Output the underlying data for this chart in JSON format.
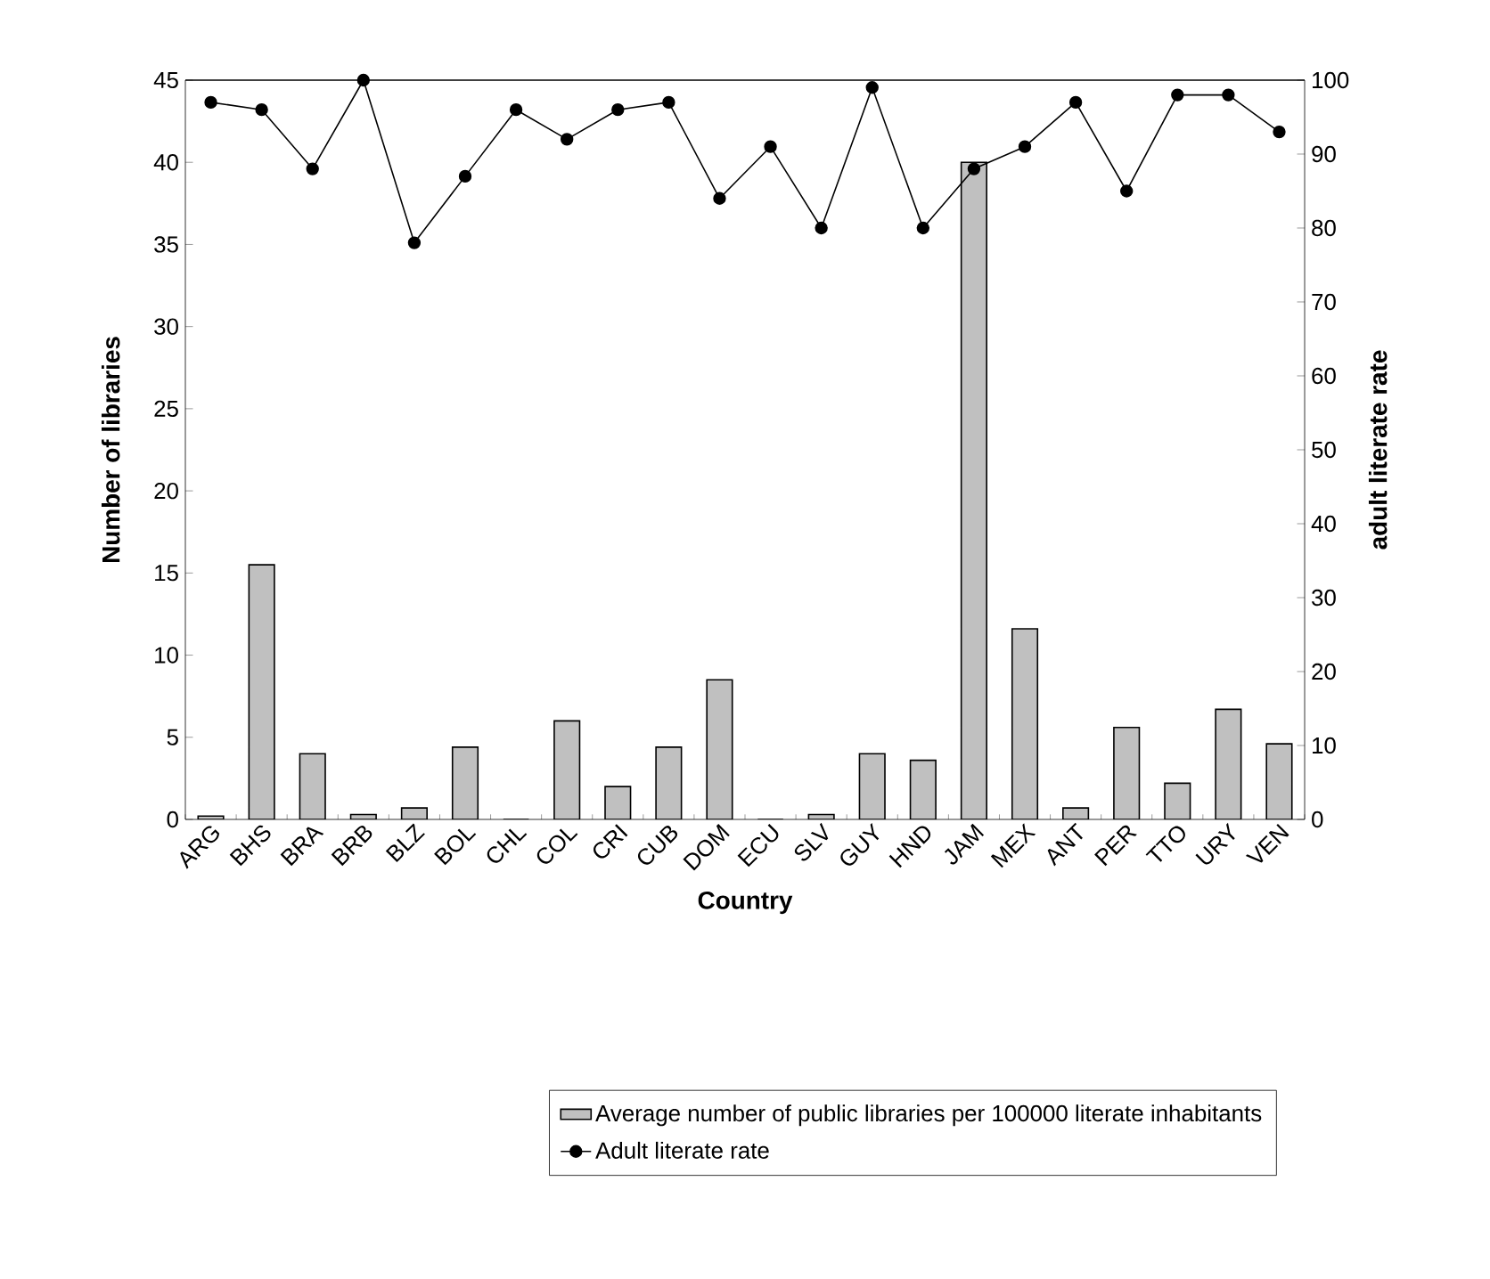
{
  "chart_data": {
    "type": "bar",
    "categories": [
      "ARG",
      "BHS",
      "BRA",
      "BRB",
      "BLZ",
      "BOL",
      "CHL",
      "COL",
      "CRI",
      "CUB",
      "DOM",
      "ECU",
      "SLV",
      "GUY",
      "HND",
      "JAM",
      "MEX",
      "ANT",
      "PER",
      "TTO",
      "URY",
      "VEN"
    ],
    "series": [
      {
        "name": "Average number of public libraries per 100000 literate inhabitants",
        "color": "#c0c0c0",
        "values": [
          0.2,
          15.5,
          4,
          0.3,
          0.7,
          4.4,
          0,
          6,
          2,
          4.4,
          8.5,
          0,
          0.3,
          4,
          3.6,
          40,
          11.6,
          0.7,
          5.6,
          2.2,
          6.7,
          4.6
        ]
      },
      {
        "name": "Adult literate rate",
        "type": "line",
        "axis": "y2",
        "color": "#000000",
        "marker": "circle",
        "values": [
          97,
          96,
          88,
          100,
          78,
          87,
          96,
          92,
          96,
          97,
          84,
          91,
          80,
          99,
          80,
          88,
          91,
          97,
          85,
          98,
          98,
          93
        ]
      }
    ],
    "xlabel": "Country",
    "ylabel": "Number of libraries",
    "y2label": "adult literate rate",
    "ylim": [
      0,
      45
    ],
    "yticks": [
      0,
      5,
      10,
      15,
      20,
      25,
      30,
      35,
      40,
      45
    ],
    "y2lim": [
      0,
      100
    ],
    "y2ticks": [
      0,
      10,
      20,
      30,
      40,
      50,
      60,
      70,
      80,
      90,
      100
    ],
    "legend": "bottom"
  }
}
